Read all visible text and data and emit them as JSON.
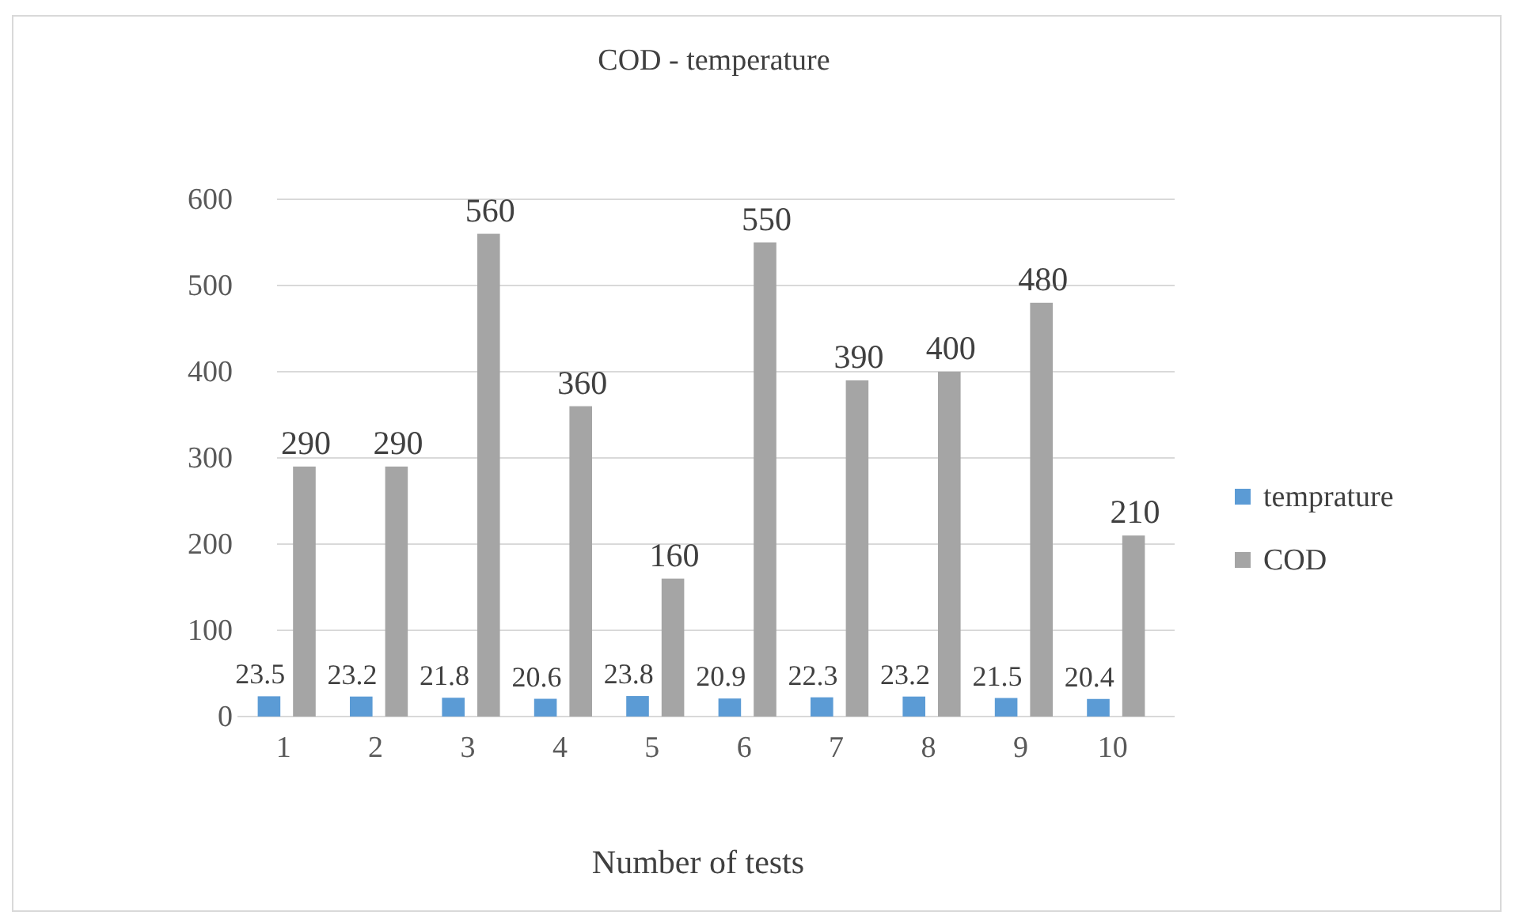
{
  "chart_data": {
    "type": "bar",
    "title": "COD - temperature",
    "xlabel": "Number of tests",
    "categories": [
      "1",
      "2",
      "3",
      "4",
      "5",
      "6",
      "7",
      "8",
      "9",
      "10"
    ],
    "series": [
      {
        "name": "temprature",
        "color": "#5b9bd5",
        "values": [
          23.5,
          23.2,
          21.8,
          20.6,
          23.8,
          20.9,
          22.3,
          23.2,
          21.5,
          20.4
        ]
      },
      {
        "name": "COD",
        "color": "#a5a5a5",
        "values": [
          290,
          290,
          560,
          360,
          160,
          550,
          390,
          400,
          480,
          210
        ]
      }
    ],
    "ylim": [
      0,
      600
    ],
    "yticks": [
      0,
      100,
      200,
      300,
      400,
      500,
      600
    ],
    "grid": "y",
    "legend": "right",
    "data_labels": true
  }
}
